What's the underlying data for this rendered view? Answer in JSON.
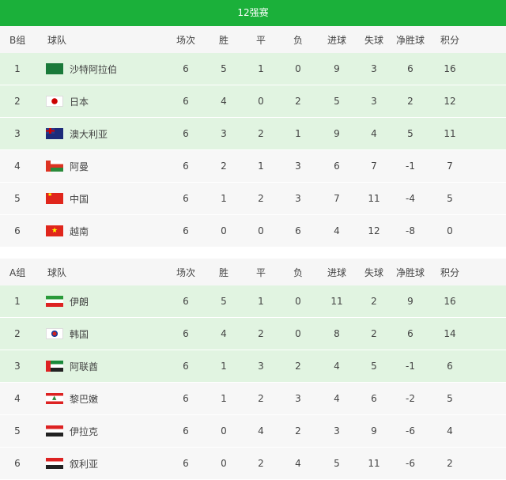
{
  "title": "12强赛",
  "columns": [
    "球队",
    "场次",
    "胜",
    "平",
    "负",
    "进球",
    "失球",
    "净胜球",
    "积分"
  ],
  "groups": [
    {
      "label": "B组",
      "rows": [
        {
          "rank": "1",
          "flag": "sa",
          "team": "沙特阿拉伯",
          "p": "6",
          "w": "5",
          "d": "1",
          "l": "0",
          "gf": "9",
          "ga": "3",
          "gd": "6",
          "pts": "16",
          "q": true
        },
        {
          "rank": "2",
          "flag": "jp",
          "team": "日本",
          "p": "6",
          "w": "4",
          "d": "0",
          "l": "2",
          "gf": "5",
          "ga": "3",
          "gd": "2",
          "pts": "12",
          "q": true
        },
        {
          "rank": "3",
          "flag": "au",
          "team": "澳大利亚",
          "p": "6",
          "w": "3",
          "d": "2",
          "l": "1",
          "gf": "9",
          "ga": "4",
          "gd": "5",
          "pts": "11",
          "q": true
        },
        {
          "rank": "4",
          "flag": "om",
          "team": "阿曼",
          "p": "6",
          "w": "2",
          "d": "1",
          "l": "3",
          "gf": "6",
          "ga": "7",
          "gd": "-1",
          "pts": "7",
          "q": false
        },
        {
          "rank": "5",
          "flag": "cn",
          "team": "中国",
          "p": "6",
          "w": "1",
          "d": "2",
          "l": "3",
          "gf": "7",
          "ga": "11",
          "gd": "-4",
          "pts": "5",
          "q": false
        },
        {
          "rank": "6",
          "flag": "vn",
          "team": "越南",
          "p": "6",
          "w": "0",
          "d": "0",
          "l": "6",
          "gf": "4",
          "ga": "12",
          "gd": "-8",
          "pts": "0",
          "q": false
        }
      ]
    },
    {
      "label": "A组",
      "rows": [
        {
          "rank": "1",
          "flag": "ir",
          "team": "伊朗",
          "p": "6",
          "w": "5",
          "d": "1",
          "l": "0",
          "gf": "11",
          "ga": "2",
          "gd": "9",
          "pts": "16",
          "q": true
        },
        {
          "rank": "2",
          "flag": "kr",
          "team": "韩国",
          "p": "6",
          "w": "4",
          "d": "2",
          "l": "0",
          "gf": "8",
          "ga": "2",
          "gd": "6",
          "pts": "14",
          "q": true
        },
        {
          "rank": "3",
          "flag": "ae",
          "team": "阿联酋",
          "p": "6",
          "w": "1",
          "d": "3",
          "l": "2",
          "gf": "4",
          "ga": "5",
          "gd": "-1",
          "pts": "6",
          "q": true
        },
        {
          "rank": "4",
          "flag": "lb",
          "team": "黎巴嫩",
          "p": "6",
          "w": "1",
          "d": "2",
          "l": "3",
          "gf": "4",
          "ga": "6",
          "gd": "-2",
          "pts": "5",
          "q": false
        },
        {
          "rank": "5",
          "flag": "iq",
          "team": "伊拉克",
          "p": "6",
          "w": "0",
          "d": "4",
          "l": "2",
          "gf": "3",
          "ga": "9",
          "gd": "-6",
          "pts": "4",
          "q": false
        },
        {
          "rank": "6",
          "flag": "sy",
          "team": "叙利亚",
          "p": "6",
          "w": "0",
          "d": "2",
          "l": "4",
          "gf": "5",
          "ga": "11",
          "gd": "-6",
          "pts": "2",
          "q": false
        }
      ]
    }
  ],
  "colors": {
    "header": "#1bb03a",
    "qualified_row": "#e1f4e1",
    "row": "#f7f7f7"
  }
}
